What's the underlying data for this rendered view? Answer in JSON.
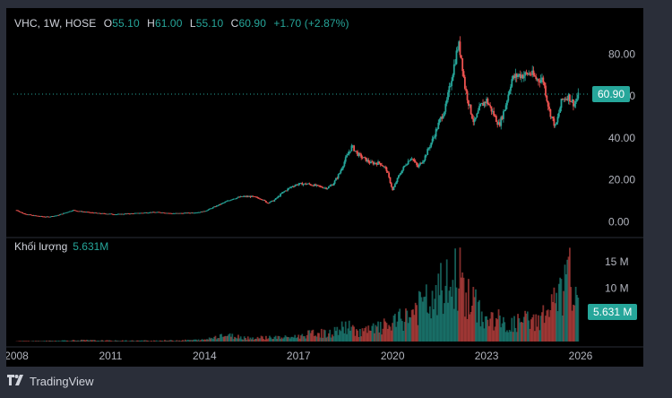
{
  "header": {
    "symbol_line": "VHC, 1W, HOSE",
    "open_label": "O",
    "open": "55.10",
    "high_label": "H",
    "high": "61.00",
    "low_label": "L",
    "low": "55.10",
    "close_label": "C",
    "close": "60.90",
    "change": "+1.70 (+2.87%)"
  },
  "price_tag": "60.90",
  "volume": {
    "label": "Khối lượng",
    "value": "5.631M",
    "tag": "5.631 M"
  },
  "footer": {
    "brand": "TradingView"
  },
  "colors": {
    "up": "#26a69a",
    "down": "#ef5350",
    "background": "#000000",
    "frame": "#2a2e39",
    "text": "#b2b5be"
  },
  "chart_data": [
    {
      "type": "candlestick",
      "title": "VHC, 1W, HOSE",
      "x_range": [
        2007.9,
        2026.2
      ],
      "x_ticks": [
        2008,
        2011,
        2014,
        2017,
        2020,
        2023,
        2026
      ],
      "x_tick_labels": [
        "2008",
        "2011",
        "2014",
        "2017",
        "2020",
        "2023",
        "2026"
      ],
      "y_ticks": [
        0,
        20,
        40,
        60,
        80
      ],
      "y_tick_labels": [
        "0.00",
        "20.00",
        "40.00",
        "60.00",
        "80.00"
      ],
      "y_range": [
        -5,
        90
      ],
      "grid": "none",
      "price_line": 60.9,
      "series": [
        {
          "x": [
            2008.0,
            2008.2,
            2008.5,
            2008.8,
            2009.0,
            2009.3,
            2009.6,
            2009.8,
            2010.0,
            2010.3,
            2010.6,
            2010.9,
            2011.2,
            2011.5,
            2011.8,
            2012.0,
            2012.3,
            2012.6,
            2012.9,
            2013.2,
            2013.5,
            2013.8,
            2014.0,
            2014.3,
            2014.6,
            2014.9,
            2015.2,
            2015.5,
            2015.8,
            2016.0,
            2016.2,
            2016.5,
            2016.8,
            2017.0,
            2017.3,
            2017.6,
            2017.9,
            2018.1,
            2018.3,
            2018.5,
            2018.7,
            2018.9,
            2019.1,
            2019.3,
            2019.6,
            2019.8,
            2020.0,
            2020.2,
            2020.4,
            2020.6,
            2020.8,
            2021.0,
            2021.3,
            2021.5,
            2021.7,
            2021.9,
            2022.1,
            2022.2,
            2022.3,
            2022.45,
            2022.6,
            2022.8,
            2023.0,
            2023.2,
            2023.4,
            2023.6,
            2023.8,
            2024.0,
            2024.2,
            2024.4,
            2024.6,
            2024.8,
            2025.0,
            2025.2,
            2025.4,
            2025.6,
            2025.8,
            2025.95
          ],
          "close": [
            5.5,
            4.0,
            3.0,
            2.5,
            2.3,
            3.0,
            4.5,
            5.5,
            5.0,
            4.5,
            4.0,
            3.8,
            3.5,
            3.8,
            4.0,
            4.2,
            4.5,
            4.5,
            4.0,
            4.0,
            4.2,
            4.5,
            5.0,
            7.0,
            9.0,
            11.0,
            12.0,
            12.0,
            11.0,
            9.0,
            10.0,
            14.0,
            17.0,
            18.0,
            18.0,
            17.0,
            16.0,
            18.0,
            23.0,
            30.0,
            36.0,
            32.0,
            30.0,
            28.0,
            28.0,
            25.0,
            15.0,
            22.0,
            27.0,
            31.0,
            26.0,
            30.0,
            40.0,
            48.0,
            55.0,
            70.0,
            85.0,
            78.0,
            65.0,
            55.0,
            47.0,
            55.0,
            58.0,
            52.0,
            46.0,
            55.0,
            68.0,
            70.0,
            70.0,
            71.0,
            68.0,
            68.0,
            53.0,
            45.0,
            58.0,
            60.0,
            56.0,
            60.9
          ]
        }
      ]
    },
    {
      "type": "bar",
      "title": "Khối lượng",
      "y_ticks": [
        5000000,
        10000000,
        15000000
      ],
      "y_tick_labels": [
        "",
        "10 M",
        "15 M"
      ],
      "y_range": [
        0,
        18000000
      ],
      "series": [
        {
          "name": "Khối lượng",
          "x": [
            2008.0,
            2009.0,
            2010.0,
            2011.0,
            2012.0,
            2013.0,
            2014.0,
            2014.5,
            2015.0,
            2015.5,
            2016.0,
            2016.5,
            2017.0,
            2017.5,
            2018.0,
            2018.5,
            2019.0,
            2019.5,
            2020.0,
            2020.5,
            2021.0,
            2021.3,
            2021.6,
            2021.9,
            2022.1,
            2022.3,
            2022.5,
            2022.8,
            2023.0,
            2023.3,
            2023.6,
            2023.9,
            2024.2,
            2024.5,
            2024.8,
            2025.1,
            2025.4,
            2025.7,
            2025.95
          ],
          "values": [
            100000,
            150000,
            300000,
            200000,
            200000,
            250000,
            400000,
            1500000,
            1200000,
            800000,
            1000000,
            900000,
            1200000,
            2000000,
            1800000,
            3500000,
            2200000,
            3000000,
            4000000,
            6000000,
            9000000,
            8000000,
            13000000,
            12000000,
            17000000,
            11000000,
            9000000,
            7000000,
            4500000,
            5500000,
            3500000,
            4000000,
            5000000,
            4500000,
            6000000,
            8000000,
            11000000,
            15000000,
            5631000
          ]
        }
      ]
    }
  ]
}
